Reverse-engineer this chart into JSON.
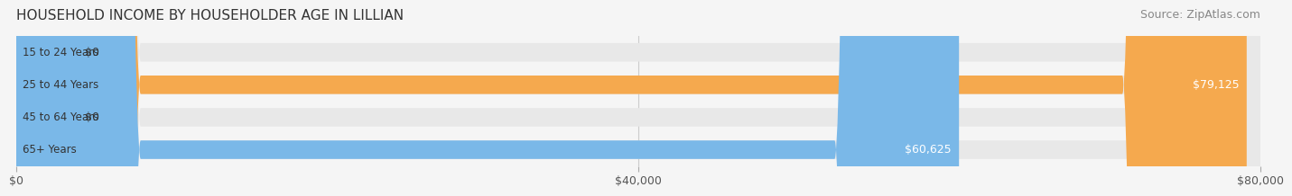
{
  "title": "HOUSEHOLD INCOME BY HOUSEHOLDER AGE IN LILLIAN",
  "source": "Source: ZipAtlas.com",
  "categories": [
    "15 to 24 Years",
    "25 to 44 Years",
    "45 to 64 Years",
    "65+ Years"
  ],
  "values": [
    0,
    79125,
    0,
    60625
  ],
  "bar_colors": [
    "#f4a0a8",
    "#f5a94e",
    "#f4a0a8",
    "#7ab8e8"
  ],
  "label_colors": [
    "#555555",
    "#ffffff",
    "#555555",
    "#ffffff"
  ],
  "xlim": [
    0,
    80000
  ],
  "xticks": [
    0,
    40000,
    80000
  ],
  "xticklabels": [
    "$0",
    "$40,000",
    "$80,000"
  ],
  "bg_color": "#f5f5f5",
  "bar_bg_color": "#e8e8e8",
  "title_fontsize": 11,
  "source_fontsize": 9,
  "tick_fontsize": 9,
  "label_fontsize": 9,
  "cat_fontsize": 8.5
}
